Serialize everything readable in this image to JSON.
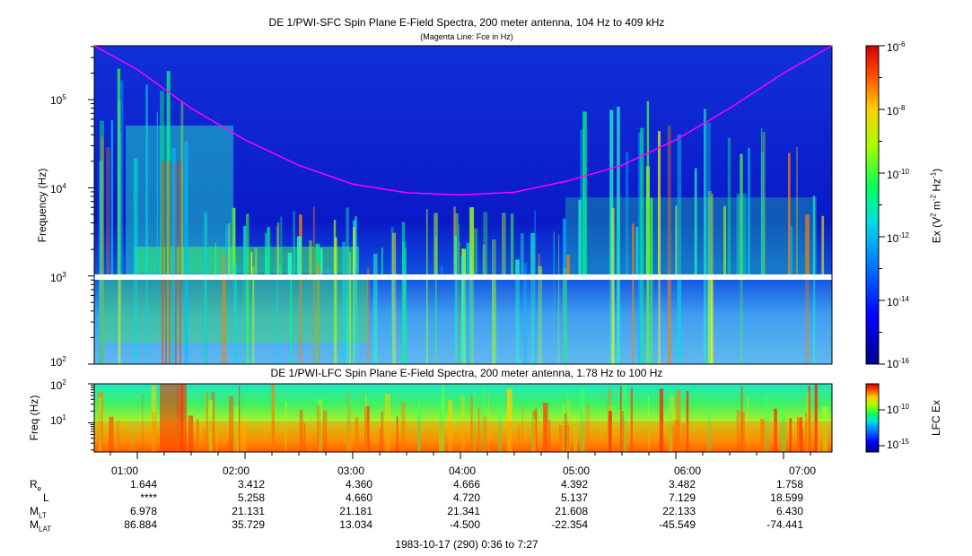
{
  "colors": {
    "magenta_line": "#ff00ff",
    "low": "#0000a0",
    "high": "#ff0000"
  },
  "top_panel": {
    "title": "DE 1/PWI-SFC  Spin Plane E-Field Spectra, 200 meter antenna, 104 Hz to 409 kHz",
    "subtitle": "(Magenta Line: Fce in Hz)",
    "ylabel": "Frequency (Hz)",
    "yticks": [
      {
        "base": "10",
        "exp": "5"
      },
      {
        "base": "10",
        "exp": "4"
      },
      {
        "base": "10",
        "exp": "3"
      },
      {
        "base": "10",
        "exp": "2"
      }
    ],
    "colorbar_label_pre": "Ex (V",
    "colorbar_label_exp1": "2",
    "colorbar_label_mid": " m",
    "colorbar_label_exp2": "-2",
    "colorbar_label_mid2": " Hz",
    "colorbar_label_exp3": "-1",
    "colorbar_label_post": ")",
    "colorbar_ticks": [
      {
        "base": "10",
        "exp": "-6"
      },
      {
        "base": "10",
        "exp": "-8"
      },
      {
        "base": "10",
        "exp": "-10"
      },
      {
        "base": "10",
        "exp": "-12"
      },
      {
        "base": "10",
        "exp": "-14"
      },
      {
        "base": "10",
        "exp": "-16"
      }
    ]
  },
  "bottom_panel": {
    "title": "DE 1/PWI-LFC  Spin Plane E-Field Spectra, 200 meter antenna, 1.78 Hz to 100 Hz",
    "ylabel": "Freq (Hz)",
    "yticks": [
      {
        "base": "10",
        "exp": "2"
      },
      {
        "base": "10",
        "exp": "1"
      }
    ],
    "colorbar_label": "LFC Ex",
    "colorbar_ticks": [
      {
        "base": "10",
        "exp": "-10"
      },
      {
        "base": "10",
        "exp": "-15"
      }
    ]
  },
  "chart_data": {
    "type": "heatmap",
    "x_unit": "UT hours (1983-10-17)",
    "x_range": [
      "00:36",
      "07:27"
    ],
    "yscale": "log",
    "top_ylim_hz": [
      100,
      409000
    ],
    "bottom_ylim_hz": [
      1.78,
      100
    ],
    "top_colorbar_range": [
      1e-16,
      1e-06
    ],
    "fce_line": {
      "name": "Fce in Hz",
      "x": [
        "00:36",
        "01:00",
        "01:30",
        "02:00",
        "02:30",
        "03:00",
        "03:30",
        "04:00",
        "04:30",
        "05:00",
        "05:30",
        "06:00",
        "06:30",
        "07:00",
        "07:27"
      ],
      "y": [
        409000,
        220000,
        80000,
        35000,
        18000,
        11000,
        8800,
        8300,
        8900,
        12000,
        18000,
        35000,
        80000,
        200000,
        409000
      ]
    }
  },
  "x_axis": {
    "ticks": [
      "01:00",
      "02:00",
      "03:00",
      "04:00",
      "05:00",
      "06:00",
      "07:00"
    ]
  },
  "ephemeris": {
    "rows": [
      {
        "label": "R",
        "sub": "e",
        "values": [
          "1.644",
          "3.412",
          "4.360",
          "4.666",
          "4.392",
          "3.482",
          "1.758"
        ]
      },
      {
        "label": "L",
        "sub": "",
        "values": [
          "****",
          "5.258",
          "4.660",
          "4.720",
          "5.137",
          "7.129",
          "18.599"
        ]
      },
      {
        "label": "M",
        "sub": "LT",
        "values": [
          "6.978",
          "21.131",
          "21.181",
          "21.341",
          "21.608",
          "22.133",
          "6.430"
        ]
      },
      {
        "label": "M",
        "sub": "LAT",
        "values": [
          "86.884",
          "35.729",
          "13.034",
          "-4.500",
          "-22.354",
          "-45.549",
          "-74.441"
        ]
      }
    ]
  },
  "footer": "1983-10-17 (290) 0:36 to 7:27"
}
